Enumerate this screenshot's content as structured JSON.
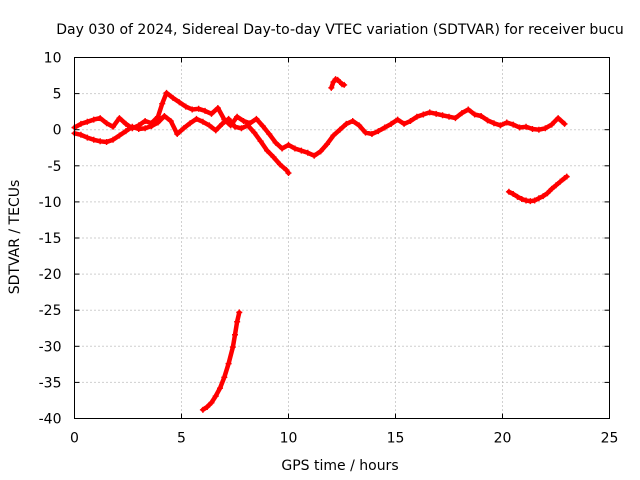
{
  "chart_data": {
    "type": "scatter",
    "title": "Day 030 of 2024, Sidereal Day-to-day VTEC variation (SDTVAR) for receiver bucu",
    "xlabel": "GPS time / hours",
    "ylabel": "SDTVAR / TECUs",
    "xlim": [
      0,
      25
    ],
    "ylim": [
      -40,
      10
    ],
    "xticks": [
      0,
      5,
      10,
      15,
      20,
      25
    ],
    "yticks": [
      10,
      5,
      0,
      -5,
      -10,
      -15,
      -20,
      -25,
      -30,
      -35,
      -40
    ],
    "grid": true,
    "marker_color": "#ff0000",
    "series": [
      {
        "name": "main-trace-upper",
        "points": [
          [
            0.0,
            0.3
          ],
          [
            0.3,
            0.8
          ],
          [
            0.6,
            1.1
          ],
          [
            0.9,
            1.4
          ],
          [
            1.2,
            1.6
          ],
          [
            1.5,
            0.9
          ],
          [
            1.8,
            0.4
          ],
          [
            2.1,
            1.6
          ],
          [
            2.4,
            0.8
          ],
          [
            2.7,
            0.2
          ],
          [
            3.0,
            0.6
          ],
          [
            3.3,
            1.2
          ],
          [
            3.6,
            0.9
          ],
          [
            3.9,
            1.8
          ],
          [
            4.1,
            3.6
          ],
          [
            4.3,
            5.1
          ],
          [
            4.6,
            4.4
          ],
          [
            4.9,
            3.8
          ],
          [
            5.2,
            3.2
          ],
          [
            5.5,
            2.8
          ],
          [
            5.8,
            2.9
          ],
          [
            6.1,
            2.6
          ],
          [
            6.4,
            2.2
          ],
          [
            6.7,
            3.0
          ],
          [
            7.0,
            1.4
          ],
          [
            7.3,
            0.6
          ],
          [
            7.6,
            1.8
          ],
          [
            7.9,
            1.2
          ],
          [
            8.2,
            0.9
          ],
          [
            8.5,
            1.5
          ],
          [
            8.8,
            0.5
          ],
          [
            9.1,
            -0.6
          ],
          [
            9.4,
            -1.8
          ],
          [
            9.7,
            -2.6
          ],
          [
            10.0,
            -2.1
          ],
          [
            10.3,
            -2.6
          ],
          [
            10.6,
            -2.9
          ],
          [
            10.9,
            -3.2
          ],
          [
            11.2,
            -3.6
          ],
          [
            11.5,
            -3.0
          ],
          [
            11.8,
            -2.0
          ],
          [
            12.1,
            -0.8
          ],
          [
            12.4,
            0.0
          ],
          [
            12.7,
            0.8
          ],
          [
            13.0,
            1.2
          ],
          [
            13.3,
            0.6
          ],
          [
            13.6,
            -0.4
          ],
          [
            13.9,
            -0.6
          ],
          [
            14.2,
            -0.2
          ],
          [
            14.5,
            0.3
          ],
          [
            14.8,
            0.8
          ],
          [
            15.1,
            1.4
          ],
          [
            15.4,
            0.8
          ],
          [
            15.7,
            1.2
          ],
          [
            16.0,
            1.8
          ],
          [
            16.3,
            2.1
          ],
          [
            16.6,
            2.4
          ],
          [
            16.9,
            2.2
          ],
          [
            17.2,
            2.0
          ],
          [
            17.5,
            1.8
          ],
          [
            17.8,
            1.6
          ],
          [
            18.1,
            2.3
          ],
          [
            18.4,
            2.8
          ],
          [
            18.7,
            2.1
          ],
          [
            19.0,
            1.9
          ],
          [
            19.3,
            1.3
          ],
          [
            19.6,
            0.9
          ],
          [
            19.9,
            0.6
          ],
          [
            20.2,
            1.0
          ],
          [
            20.5,
            0.7
          ],
          [
            20.8,
            0.3
          ],
          [
            21.1,
            0.4
          ],
          [
            21.4,
            0.1
          ],
          [
            21.7,
            0.0
          ],
          [
            22.0,
            0.2
          ],
          [
            22.3,
            0.7
          ],
          [
            22.6,
            1.6
          ],
          [
            22.9,
            0.8
          ]
        ]
      },
      {
        "name": "main-trace-lower",
        "points": [
          [
            0.0,
            -0.5
          ],
          [
            0.3,
            -0.7
          ],
          [
            0.6,
            -1.1
          ],
          [
            0.9,
            -1.4
          ],
          [
            1.2,
            -1.6
          ],
          [
            1.5,
            -1.7
          ],
          [
            1.8,
            -1.4
          ],
          [
            2.1,
            -0.8
          ],
          [
            2.4,
            -0.2
          ],
          [
            2.7,
            0.4
          ],
          [
            3.0,
            0.1
          ],
          [
            3.3,
            0.2
          ],
          [
            3.6,
            0.5
          ],
          [
            3.9,
            1.0
          ],
          [
            4.2,
            1.9
          ],
          [
            4.5,
            1.2
          ],
          [
            4.8,
            -0.6
          ],
          [
            5.1,
            0.2
          ],
          [
            5.4,
            0.9
          ],
          [
            5.7,
            1.5
          ],
          [
            6.0,
            1.1
          ],
          [
            6.3,
            0.6
          ],
          [
            6.6,
            -0.1
          ],
          [
            6.9,
            0.8
          ],
          [
            7.2,
            1.5
          ],
          [
            7.5,
            0.4
          ],
          [
            7.8,
            0.2
          ],
          [
            8.1,
            0.6
          ],
          [
            8.4,
            -0.4
          ],
          [
            8.7,
            -1.6
          ],
          [
            9.0,
            -2.9
          ],
          [
            9.3,
            -3.8
          ],
          [
            9.6,
            -4.8
          ],
          [
            9.9,
            -5.6
          ],
          [
            10.0,
            -6.0
          ]
        ]
      },
      {
        "name": "upper-isolated-arc",
        "points": [
          [
            12.0,
            5.8
          ],
          [
            12.1,
            6.6
          ],
          [
            12.2,
            7.0
          ],
          [
            12.3,
            6.9
          ],
          [
            12.4,
            6.6
          ],
          [
            12.5,
            6.3
          ],
          [
            12.6,
            6.2
          ]
        ]
      },
      {
        "name": "right-arc",
        "points": [
          [
            20.3,
            -8.6
          ],
          [
            20.5,
            -8.9
          ],
          [
            20.7,
            -9.3
          ],
          [
            20.9,
            -9.6
          ],
          [
            21.1,
            -9.8
          ],
          [
            21.3,
            -9.9
          ],
          [
            21.5,
            -9.8
          ],
          [
            21.7,
            -9.5
          ],
          [
            21.9,
            -9.2
          ],
          [
            22.1,
            -8.8
          ],
          [
            22.3,
            -8.2
          ],
          [
            22.5,
            -7.7
          ],
          [
            22.7,
            -7.2
          ],
          [
            22.9,
            -6.7
          ],
          [
            23.0,
            -6.5
          ]
        ]
      },
      {
        "name": "lower-streak",
        "points": [
          [
            6.0,
            -38.8
          ],
          [
            6.2,
            -38.4
          ],
          [
            6.4,
            -37.8
          ],
          [
            6.6,
            -36.9
          ],
          [
            6.8,
            -35.8
          ],
          [
            7.0,
            -34.3
          ],
          [
            7.2,
            -32.4
          ],
          [
            7.4,
            -30.1
          ],
          [
            7.5,
            -28.4
          ],
          [
            7.6,
            -26.6
          ],
          [
            7.7,
            -25.3
          ]
        ]
      }
    ]
  }
}
